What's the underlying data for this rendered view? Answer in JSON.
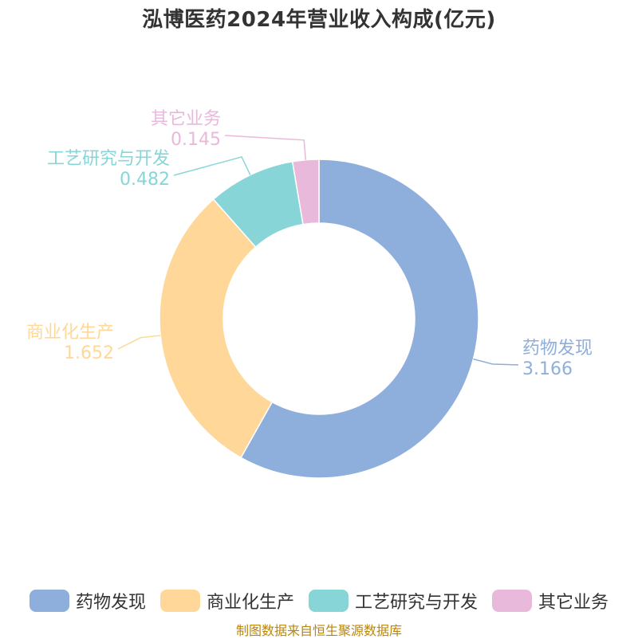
{
  "chart_data": {
    "type": "pie",
    "title": "泓博医药2024年营业收入构成(亿元)",
    "categories": [
      "药物发现",
      "商业化生产",
      "工艺研究与开发",
      "其它业务"
    ],
    "values": [
      3.166,
      1.652,
      0.482,
      0.145
    ],
    "value_labels": [
      "3.166",
      "1.652",
      "0.482",
      "0.145"
    ],
    "colors": [
      "#8eaedb",
      "#ffd899",
      "#88d5d8",
      "#e8b9da"
    ],
    "donut": true,
    "legend_position": "bottom"
  },
  "footer": {
    "source": "制图数据来自恒生聚源数据库"
  }
}
